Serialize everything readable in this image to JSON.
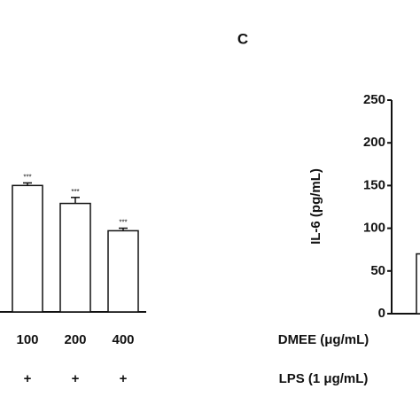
{
  "chart_data": [
    {
      "type": "bar",
      "categories": [
        "100",
        "200",
        "400"
      ],
      "values": [
        148,
        127,
        95
      ],
      "errors": [
        3,
        7,
        3
      ],
      "annotations": [
        "***",
        "***",
        "***"
      ],
      "lps": [
        "+",
        "+",
        "+"
      ],
      "color": "#ffffff",
      "ylim": [
        0,
        250
      ],
      "yaxis": false
    },
    {
      "type": "bar",
      "title": "C",
      "ylabel": "IL-6 (pg/mL)",
      "row_labels": [
        "DMEE (μg/mL)",
        "LPS (1 μg/mL)"
      ],
      "categories": [
        null
      ],
      "values": [
        70
      ],
      "color": "#ffffff",
      "ylim": [
        0,
        250
      ],
      "yticks": [
        0,
        50,
        100,
        150,
        200,
        250
      ],
      "yaxis": true
    }
  ]
}
